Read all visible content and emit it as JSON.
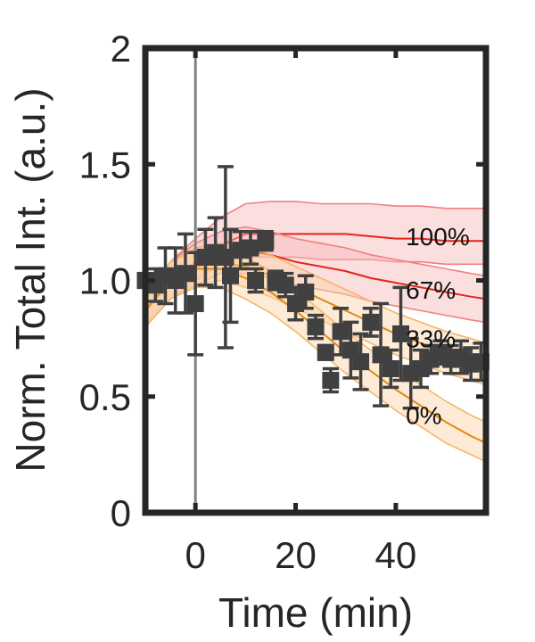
{
  "chart_data": {
    "type": "line",
    "title": "",
    "xlabel": "Time (min)",
    "ylabel": "Norm. Total Int. (a.u.)",
    "xlim": [
      -10,
      58
    ],
    "ylim": [
      0,
      2
    ],
    "xticks": [
      0,
      20,
      40
    ],
    "yticks": [
      {
        "value": 0,
        "label": "0"
      },
      {
        "value": 0.5,
        "label": "0.5"
      },
      {
        "value": 1.0,
        "label": "1.0"
      },
      {
        "value": 1.5,
        "label": "1.5"
      },
      {
        "value": 2,
        "label": "2"
      }
    ],
    "vertical_line_x": 0,
    "grid": false,
    "colors": {
      "axis": "#262626",
      "markers": "#404040",
      "vline": "#808080",
      "high_line": "#e3241c",
      "high_band": "#f7b8b8",
      "high_band_edge": "#f08080",
      "low_line": "#e08a10",
      "low_band": "#fbd3a6",
      "low_band_edge": "#f5b66b"
    },
    "model_bands": [
      {
        "label": "100%",
        "label_x": 42,
        "label_y": 1.19,
        "line": "high_line",
        "fill": "high_band",
        "edge": "high_band_edge",
        "x": [
          -10,
          -5,
          0,
          5,
          10,
          15,
          20,
          25,
          30,
          35,
          40,
          45,
          50,
          55,
          58
        ],
        "mean": [
          0.87,
          1.0,
          1.08,
          1.15,
          1.2,
          1.2,
          1.2,
          1.2,
          1.2,
          1.19,
          1.18,
          1.18,
          1.17,
          1.17,
          1.17
        ],
        "upper": [
          0.94,
          1.08,
          1.18,
          1.27,
          1.33,
          1.34,
          1.34,
          1.33,
          1.33,
          1.33,
          1.32,
          1.32,
          1.31,
          1.31,
          1.31
        ],
        "lower": [
          0.8,
          0.92,
          1.0,
          1.07,
          1.1,
          1.1,
          1.1,
          1.09,
          1.09,
          1.09,
          1.08,
          1.08,
          1.07,
          1.07,
          1.07
        ]
      },
      {
        "label": "67%",
        "label_x": 42,
        "label_y": 0.96,
        "line": "high_line",
        "fill": "high_band",
        "edge": "high_band_edge",
        "x": [
          -10,
          -5,
          0,
          5,
          10,
          15,
          20,
          25,
          30,
          35,
          40,
          45,
          50,
          55,
          58
        ],
        "mean": [
          0.87,
          1.0,
          1.07,
          1.12,
          1.13,
          1.11,
          1.08,
          1.06,
          1.04,
          1.01,
          0.99,
          0.97,
          0.95,
          0.93,
          0.92
        ],
        "upper": [
          0.94,
          1.08,
          1.16,
          1.21,
          1.23,
          1.21,
          1.18,
          1.16,
          1.14,
          1.11,
          1.09,
          1.07,
          1.05,
          1.03,
          1.02
        ],
        "lower": [
          0.8,
          0.92,
          0.98,
          1.03,
          1.03,
          1.01,
          0.98,
          0.96,
          0.94,
          0.91,
          0.89,
          0.87,
          0.85,
          0.83,
          0.82
        ]
      },
      {
        "label": "33%",
        "label_x": 42,
        "label_y": 0.75,
        "line": "low_line",
        "fill": "low_band",
        "edge": "low_band_edge",
        "x": [
          -10,
          -5,
          0,
          5,
          10,
          15,
          20,
          25,
          30,
          35,
          40,
          45,
          50,
          55,
          58
        ],
        "mean": [
          0.87,
          1.0,
          1.06,
          1.08,
          1.06,
          1.02,
          0.97,
          0.92,
          0.87,
          0.82,
          0.77,
          0.73,
          0.69,
          0.66,
          0.64
        ],
        "upper": [
          0.94,
          1.08,
          1.14,
          1.16,
          1.15,
          1.11,
          1.06,
          1.01,
          0.96,
          0.91,
          0.86,
          0.82,
          0.78,
          0.75,
          0.73
        ],
        "lower": [
          0.8,
          0.92,
          0.98,
          1.0,
          0.97,
          0.93,
          0.88,
          0.83,
          0.78,
          0.73,
          0.68,
          0.64,
          0.6,
          0.57,
          0.55
        ]
      },
      {
        "label": "0%",
        "label_x": 42,
        "label_y": 0.42,
        "line": "low_line",
        "fill": "low_band",
        "edge": "low_band_edge",
        "x": [
          -10,
          -5,
          0,
          5,
          10,
          15,
          20,
          25,
          30,
          35,
          40,
          45,
          50,
          55,
          58
        ],
        "mean": [
          0.87,
          1.0,
          1.05,
          1.05,
          1.01,
          0.95,
          0.87,
          0.78,
          0.69,
          0.61,
          0.53,
          0.46,
          0.39,
          0.33,
          0.3
        ],
        "upper": [
          0.94,
          1.08,
          1.13,
          1.13,
          1.1,
          1.04,
          0.96,
          0.87,
          0.78,
          0.7,
          0.62,
          0.55,
          0.48,
          0.42,
          0.39
        ],
        "lower": [
          0.8,
          0.92,
          0.97,
          0.97,
          0.92,
          0.86,
          0.78,
          0.69,
          0.6,
          0.52,
          0.44,
          0.37,
          0.3,
          0.25,
          0.22
        ]
      }
    ],
    "series": [
      {
        "marker": "square",
        "points": [
          {
            "x": -10,
            "y": 1.0,
            "err": 0.03
          },
          {
            "x": -8,
            "y": 0.98,
            "err": 0.07
          },
          {
            "x": -6,
            "y": 1.02,
            "err": 0.12
          },
          {
            "x": -4,
            "y": 1.0,
            "err": 0.14
          },
          {
            "x": -2,
            "y": 1.03,
            "err": 0.17
          },
          {
            "x": 0,
            "y": 0.9,
            "err": 0.22
          },
          {
            "x": 2,
            "y": 1.1,
            "err": 0.12
          },
          {
            "x": 4,
            "y": 1.12,
            "err": 0.15
          },
          {
            "x": 6,
            "y": 1.1,
            "err": 0.39
          },
          {
            "x": 7,
            "y": 1.02,
            "err": 0.2
          },
          {
            "x": 9,
            "y": 1.13,
            "err": 0.08
          },
          {
            "x": 11,
            "y": 1.14,
            "err": 0.07
          },
          {
            "x": 12,
            "y": 1.0,
            "err": 0.05
          },
          {
            "x": 14,
            "y": 1.17,
            "err": 0.04
          },
          {
            "x": 16,
            "y": 1.0,
            "err": 0.04
          },
          {
            "x": 18,
            "y": 0.98,
            "err": 0.05
          },
          {
            "x": 20,
            "y": 0.9,
            "err": 0.07
          },
          {
            "x": 22,
            "y": 0.95,
            "err": 0.07
          },
          {
            "x": 24,
            "y": 0.8,
            "err": 0.05
          },
          {
            "x": 26,
            "y": 0.69,
            "err": 0.03
          },
          {
            "x": 27,
            "y": 0.57,
            "err": 0.05
          },
          {
            "x": 29,
            "y": 0.78,
            "err": 0.1
          },
          {
            "x": 31,
            "y": 0.7,
            "err": 0.12
          },
          {
            "x": 33,
            "y": 0.65,
            "err": 0.12
          },
          {
            "x": 35,
            "y": 0.82,
            "err": 0.06
          },
          {
            "x": 37,
            "y": 0.68,
            "err": 0.22
          },
          {
            "x": 39,
            "y": 0.62,
            "err": 0.08
          },
          {
            "x": 41,
            "y": 0.77,
            "err": 0.2
          },
          {
            "x": 43,
            "y": 0.6,
            "err": 0.15
          },
          {
            "x": 45,
            "y": 0.62,
            "err": 0.08
          },
          {
            "x": 47,
            "y": 0.66,
            "err": 0.06
          },
          {
            "x": 49,
            "y": 0.69,
            "err": 0.05
          },
          {
            "x": 51,
            "y": 0.66,
            "err": 0.06
          },
          {
            "x": 53,
            "y": 0.67,
            "err": 0.07
          },
          {
            "x": 55,
            "y": 0.64,
            "err": 0.07
          },
          {
            "x": 57,
            "y": 0.65,
            "err": 0.08
          }
        ]
      }
    ]
  }
}
